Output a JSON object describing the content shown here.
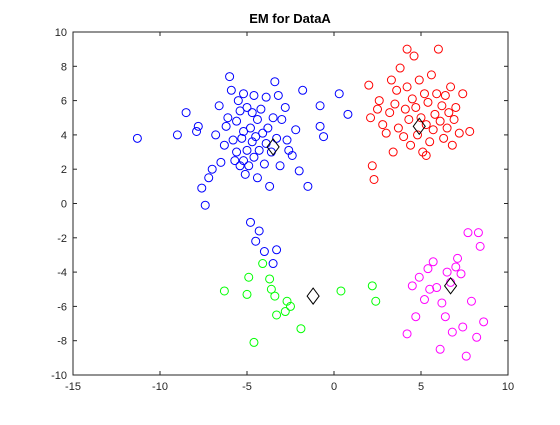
{
  "chart_data": {
    "type": "scatter",
    "title": "EM for DataA",
    "xlabel": "",
    "ylabel": "",
    "xlim": [
      -15,
      10
    ],
    "ylim": [
      -10,
      10
    ],
    "xticks": [
      -15,
      -10,
      -5,
      0,
      5,
      10
    ],
    "yticks": [
      -10,
      -8,
      -6,
      -4,
      -2,
      0,
      2,
      4,
      6,
      8,
      10
    ],
    "grid": false,
    "legend": "none",
    "marker": "open-circle",
    "series": [
      {
        "color": "#0000ff",
        "points": [
          [
            -11.3,
            3.8
          ],
          [
            -9.0,
            4.0
          ],
          [
            -8.5,
            5.3
          ],
          [
            -7.9,
            4.2
          ],
          [
            -7.8,
            4.5
          ],
          [
            -7.6,
            0.9
          ],
          [
            -7.4,
            -0.1
          ],
          [
            -7.2,
            1.5
          ],
          [
            -7.0,
            2.0
          ],
          [
            -6.8,
            4.0
          ],
          [
            -6.6,
            5.7
          ],
          [
            -6.5,
            2.4
          ],
          [
            -6.3,
            3.4
          ],
          [
            -6.2,
            4.5
          ],
          [
            -6.1,
            5.0
          ],
          [
            -6.0,
            7.4
          ],
          [
            -5.9,
            6.6
          ],
          [
            -5.8,
            3.7
          ],
          [
            -5.7,
            2.5
          ],
          [
            -5.6,
            3.0
          ],
          [
            -5.6,
            4.8
          ],
          [
            -5.5,
            6.0
          ],
          [
            -5.4,
            2.2
          ],
          [
            -5.4,
            5.4
          ],
          [
            -5.3,
            3.8
          ],
          [
            -5.2,
            2.5
          ],
          [
            -5.2,
            4.2
          ],
          [
            -5.1,
            1.7
          ],
          [
            -5.0,
            5.6
          ],
          [
            -5.0,
            3.1
          ],
          [
            -4.9,
            2.2
          ],
          [
            -4.8,
            4.4
          ],
          [
            -4.7,
            3.6
          ],
          [
            -4.7,
            5.3
          ],
          [
            -4.6,
            6.3
          ],
          [
            -4.6,
            2.7
          ],
          [
            -4.5,
            3.9
          ],
          [
            -4.4,
            4.9
          ],
          [
            -4.4,
            1.5
          ],
          [
            -4.3,
            3.1
          ],
          [
            -4.2,
            5.5
          ],
          [
            -4.1,
            4.1
          ],
          [
            -4.0,
            2.3
          ],
          [
            -3.9,
            3.5
          ],
          [
            -3.9,
            6.2
          ],
          [
            -3.8,
            4.4
          ],
          [
            -3.7,
            1.0
          ],
          [
            -3.6,
            3.0
          ],
          [
            -3.5,
            5.0
          ],
          [
            -3.4,
            7.1
          ],
          [
            -3.3,
            3.8
          ],
          [
            -3.2,
            6.3
          ],
          [
            -3.1,
            2.2
          ],
          [
            -3.0,
            4.9
          ],
          [
            -2.8,
            5.6
          ],
          [
            -2.7,
            3.7
          ],
          [
            -2.6,
            3.1
          ],
          [
            -2.4,
            2.8
          ],
          [
            -2.2,
            4.3
          ],
          [
            -2.0,
            1.9
          ],
          [
            -1.8,
            6.6
          ],
          [
            -1.5,
            1.0
          ],
          [
            -0.8,
            5.7
          ],
          [
            -0.8,
            4.5
          ],
          [
            -0.6,
            3.9
          ],
          [
            0.3,
            6.4
          ],
          [
            0.8,
            5.2
          ],
          [
            -4.8,
            -1.1
          ],
          [
            -4.5,
            -2.2
          ],
          [
            -4.3,
            -1.6
          ],
          [
            -4.0,
            -2.8
          ],
          [
            -3.5,
            -3.5
          ],
          [
            -3.3,
            -2.7
          ],
          [
            -5.2,
            6.4
          ]
        ]
      },
      {
        "color": "#ff0000",
        "points": [
          [
            2.0,
            6.9
          ],
          [
            2.1,
            5.0
          ],
          [
            2.2,
            2.2
          ],
          [
            2.3,
            1.4
          ],
          [
            2.5,
            5.5
          ],
          [
            2.6,
            6.0
          ],
          [
            2.8,
            4.6
          ],
          [
            3.0,
            4.1
          ],
          [
            3.2,
            5.3
          ],
          [
            3.3,
            7.2
          ],
          [
            3.4,
            3.0
          ],
          [
            3.5,
            5.8
          ],
          [
            3.6,
            6.6
          ],
          [
            3.7,
            4.4
          ],
          [
            3.8,
            7.9
          ],
          [
            4.0,
            3.9
          ],
          [
            4.1,
            5.5
          ],
          [
            4.2,
            6.8
          ],
          [
            4.3,
            4.9
          ],
          [
            4.4,
            3.4
          ],
          [
            4.5,
            6.1
          ],
          [
            4.6,
            8.6
          ],
          [
            4.7,
            5.6
          ],
          [
            4.8,
            4.0
          ],
          [
            4.9,
            7.2
          ],
          [
            5.0,
            5.0
          ],
          [
            5.1,
            3.0
          ],
          [
            5.2,
            6.4
          ],
          [
            5.3,
            4.6
          ],
          [
            5.4,
            5.9
          ],
          [
            5.5,
            3.6
          ],
          [
            5.6,
            7.5
          ],
          [
            5.7,
            4.3
          ],
          [
            5.8,
            5.2
          ],
          [
            5.9,
            6.4
          ],
          [
            6.0,
            9.0
          ],
          [
            6.1,
            4.8
          ],
          [
            6.2,
            5.7
          ],
          [
            6.3,
            3.8
          ],
          [
            6.4,
            6.3
          ],
          [
            6.5,
            4.4
          ],
          [
            6.6,
            5.3
          ],
          [
            6.7,
            6.8
          ],
          [
            6.8,
            3.4
          ],
          [
            6.9,
            4.9
          ],
          [
            7.0,
            5.6
          ],
          [
            7.2,
            4.1
          ],
          [
            7.4,
            6.4
          ],
          [
            7.8,
            4.2
          ],
          [
            4.2,
            9.0
          ],
          [
            5.3,
            2.8
          ]
        ]
      },
      {
        "color": "#00ff00",
        "points": [
          [
            -6.3,
            -5.1
          ],
          [
            -5.0,
            -5.3
          ],
          [
            -4.9,
            -4.3
          ],
          [
            -4.6,
            -8.1
          ],
          [
            -3.7,
            -4.4
          ],
          [
            -3.6,
            -5.0
          ],
          [
            -3.4,
            -5.4
          ],
          [
            -3.3,
            -6.5
          ],
          [
            -2.7,
            -5.7
          ],
          [
            -2.5,
            -6.0
          ],
          [
            -1.9,
            -7.3
          ],
          [
            0.4,
            -5.1
          ],
          [
            2.2,
            -4.8
          ],
          [
            2.4,
            -5.7
          ],
          [
            -2.8,
            -6.3
          ],
          [
            -4.1,
            -3.5
          ]
        ]
      },
      {
        "color": "#ff00ff",
        "points": [
          [
            4.2,
            -7.6
          ],
          [
            4.5,
            -4.8
          ],
          [
            4.7,
            -6.6
          ],
          [
            4.9,
            -4.3
          ],
          [
            5.2,
            -5.6
          ],
          [
            5.4,
            -3.8
          ],
          [
            5.5,
            -5.0
          ],
          [
            5.7,
            -3.4
          ],
          [
            5.9,
            -4.9
          ],
          [
            6.1,
            -8.5
          ],
          [
            6.2,
            -5.8
          ],
          [
            6.4,
            -6.6
          ],
          [
            6.5,
            -4.0
          ],
          [
            6.7,
            -4.6
          ],
          [
            6.8,
            -7.5
          ],
          [
            7.0,
            -3.7
          ],
          [
            7.1,
            -3.2
          ],
          [
            7.3,
            -4.1
          ],
          [
            7.4,
            -7.2
          ],
          [
            7.6,
            -8.9
          ],
          [
            7.7,
            -1.7
          ],
          [
            7.9,
            -5.7
          ],
          [
            8.2,
            -7.8
          ],
          [
            8.3,
            -1.7
          ],
          [
            8.4,
            -2.5
          ],
          [
            8.6,
            -6.9
          ]
        ]
      }
    ],
    "centroids": {
      "marker": "open-diamond",
      "color": "#000000",
      "points": [
        [
          -3.5,
          3.3
        ],
        [
          4.9,
          4.5
        ],
        [
          -1.2,
          -5.4
        ],
        [
          6.7,
          -4.8
        ]
      ]
    }
  }
}
